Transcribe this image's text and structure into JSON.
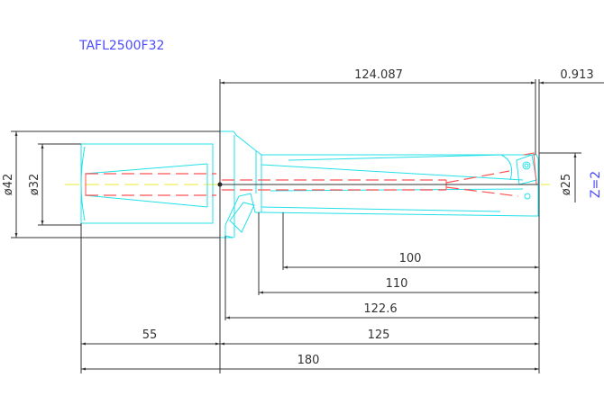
{
  "title": "TAFL2500F32",
  "dimensions": {
    "d_overall_len": "124.087",
    "d_tip_offset": "0.913",
    "d_shank_outer": "ø42",
    "d_shank": "ø32",
    "d_cut": "ø25",
    "flutes": "Z=2",
    "l_100": "100",
    "l_110": "110",
    "l_122": "122.6",
    "l_55": "55",
    "l_125": "125",
    "l_180": "180"
  },
  "colors": {
    "body": "#22e0e8",
    "hidden": "#ff5050",
    "dimension": "#333333",
    "label": "#4b4bff",
    "centerline": "#e8e830"
  }
}
